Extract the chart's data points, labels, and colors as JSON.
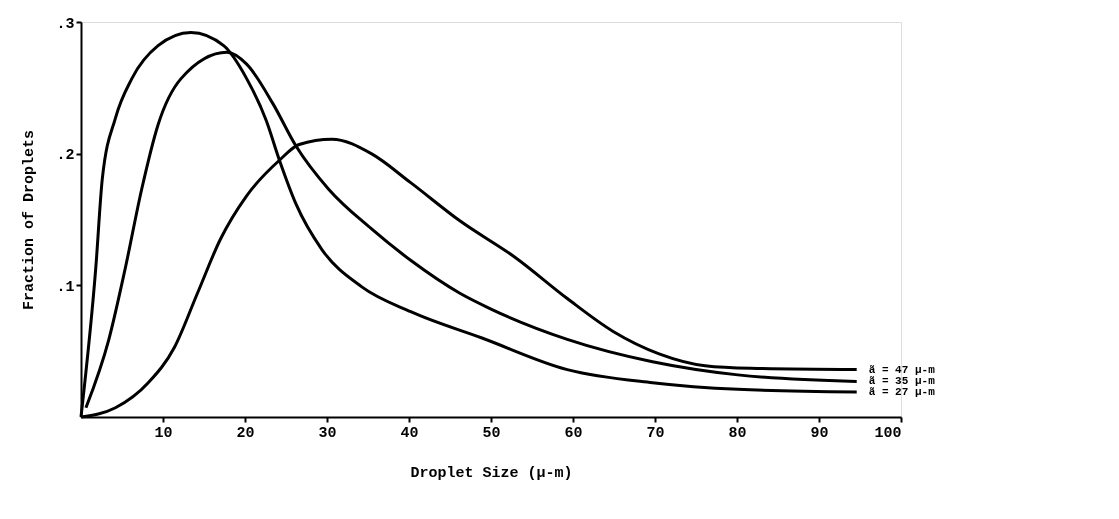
{
  "chart_data": {
    "type": "line",
    "xlabel": "Droplet Size (μ-m)",
    "ylabel": "Fraction of Droplets",
    "xlim": [
      0,
      100
    ],
    "ylim": [
      0,
      0.3
    ],
    "xticks": [
      10,
      20,
      30,
      40,
      50,
      60,
      70,
      80,
      90,
      100
    ],
    "yticks": [
      {
        "value": 0.1,
        "label": ".1"
      },
      {
        "value": 0.2,
        "label": ".2"
      },
      {
        "value": 0.3,
        "label": ".3"
      }
    ],
    "grid": false,
    "series": [
      {
        "name": "ã = 47 μ-m",
        "color": "#000000",
        "x": [
          0,
          4.2,
          8.2,
          11.4,
          14.2,
          17,
          20.2,
          24.2,
          26.6,
          30.6,
          35.4,
          40.2,
          46.2,
          53,
          59.3,
          64.9,
          70.5,
          76.1,
          81.7,
          94.6
        ],
        "values": [
          0,
          0.007,
          0.026,
          0.053,
          0.094,
          0.135,
          0.168,
          0.195,
          0.207,
          0.211,
          0.2,
          0.178,
          0.149,
          0.121,
          0.09,
          0.065,
          0.048,
          0.039,
          0.037,
          0.036
        ]
      },
      {
        "name": "ã = 35 μ-m",
        "color": "#000000",
        "x": [
          0.6,
          3.4,
          5.4,
          7.4,
          9.4,
          12.2,
          17.8,
          20.2,
          23.4,
          26.2,
          30.2,
          35.4,
          40.2,
          46.2,
          50,
          59.3,
          69.7,
          80.1,
          94.6
        ],
        "values": [
          0.007,
          0.059,
          0.113,
          0.173,
          0.222,
          0.257,
          0.277,
          0.268,
          0.238,
          0.206,
          0.173,
          0.143,
          0.119,
          0.094,
          0.082,
          0.059,
          0.042,
          0.032,
          0.027
        ]
      },
      {
        "name": "ã = 27 μ-m",
        "color": "#000000",
        "x": [
          0,
          1.8,
          2.6,
          4.2,
          6.2,
          9.4,
          13.4,
          17.4,
          20.2,
          22.6,
          24.2,
          26.2,
          29.4,
          34.2,
          40.2,
          48.9,
          59.3,
          69.7,
          80.1,
          94.6
        ],
        "values": [
          0,
          0.113,
          0.181,
          0.227,
          0.257,
          0.282,
          0.292,
          0.282,
          0.257,
          0.225,
          0.195,
          0.162,
          0.127,
          0.099,
          0.08,
          0.06,
          0.036,
          0.026,
          0.021,
          0.019
        ]
      }
    ]
  }
}
